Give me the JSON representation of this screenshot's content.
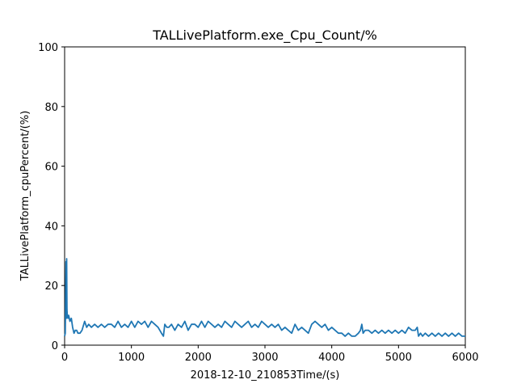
{
  "chart_data": {
    "type": "line",
    "title": "TALLivePlatform.exe_Cpu_Count/%",
    "xlabel": "2018-12-10_210853Time/(s)",
    "ylabel": "TALLivePlatform_cpuPercent/(%)",
    "xlim": [
      0,
      6000
    ],
    "ylim": [
      0,
      100
    ],
    "xticks": [
      0,
      1000,
      2000,
      3000,
      4000,
      5000,
      6000
    ],
    "yticks": [
      0,
      20,
      40,
      60,
      80,
      100
    ],
    "grid": false,
    "line_color": "#1f77b4",
    "series": [
      {
        "x": [
          0,
          10,
          20,
          25,
          30,
          35,
          40,
          50,
          60,
          80,
          100,
          120,
          140,
          160,
          180,
          200,
          230,
          260,
          300,
          330,
          360,
          400,
          450,
          500,
          550,
          600,
          650,
          700,
          750,
          800,
          850,
          900,
          950,
          1000,
          1050,
          1100,
          1150,
          1200,
          1250,
          1300,
          1350,
          1400,
          1450,
          1480,
          1500,
          1530,
          1560,
          1600,
          1650,
          1700,
          1750,
          1800,
          1850,
          1900,
          1950,
          2000,
          2050,
          2100,
          2150,
          2200,
          2250,
          2300,
          2350,
          2400,
          2450,
          2500,
          2550,
          2600,
          2650,
          2700,
          2750,
          2800,
          2850,
          2900,
          2950,
          3000,
          3050,
          3100,
          3150,
          3200,
          3250,
          3300,
          3350,
          3400,
          3450,
          3500,
          3550,
          3600,
          3650,
          3700,
          3750,
          3800,
          3850,
          3900,
          3950,
          4000,
          4050,
          4100,
          4150,
          4200,
          4250,
          4300,
          4350,
          4400,
          4430,
          4450,
          4470,
          4500,
          4550,
          4600,
          4650,
          4700,
          4750,
          4800,
          4850,
          4900,
          4950,
          5000,
          5050,
          5100,
          5150,
          5200,
          5250,
          5280,
          5300,
          5330,
          5360,
          5400,
          5450,
          5500,
          5550,
          5600,
          5650,
          5700,
          5750,
          5800,
          5850,
          5900,
          5950,
          6000
        ],
        "values": [
          3,
          4,
          28,
          9,
          29,
          12,
          10,
          9,
          10,
          8,
          9,
          6,
          4,
          5,
          5,
          4,
          4,
          5,
          8,
          6,
          7,
          6,
          7,
          6,
          7,
          6,
          7,
          7,
          6,
          8,
          6,
          7,
          6,
          8,
          6,
          8,
          7,
          8,
          6,
          8,
          7,
          6,
          4,
          3,
          7,
          6,
          6,
          7,
          5,
          7,
          6,
          8,
          5,
          7,
          7,
          6,
          8,
          6,
          8,
          7,
          6,
          7,
          6,
          8,
          7,
          6,
          8,
          7,
          6,
          7,
          8,
          6,
          7,
          6,
          8,
          7,
          6,
          7,
          6,
          7,
          5,
          6,
          5,
          4,
          7,
          5,
          6,
          5,
          4,
          7,
          8,
          7,
          6,
          7,
          5,
          6,
          5,
          4,
          4,
          3,
          4,
          3,
          3,
          4,
          5,
          7,
          4,
          5,
          5,
          4,
          5,
          4,
          5,
          4,
          5,
          4,
          5,
          4,
          5,
          4,
          6,
          5,
          5,
          6,
          3,
          4,
          3,
          4,
          3,
          4,
          3,
          4,
          3,
          4,
          3,
          4,
          3,
          4,
          3,
          3
        ]
      }
    ]
  }
}
